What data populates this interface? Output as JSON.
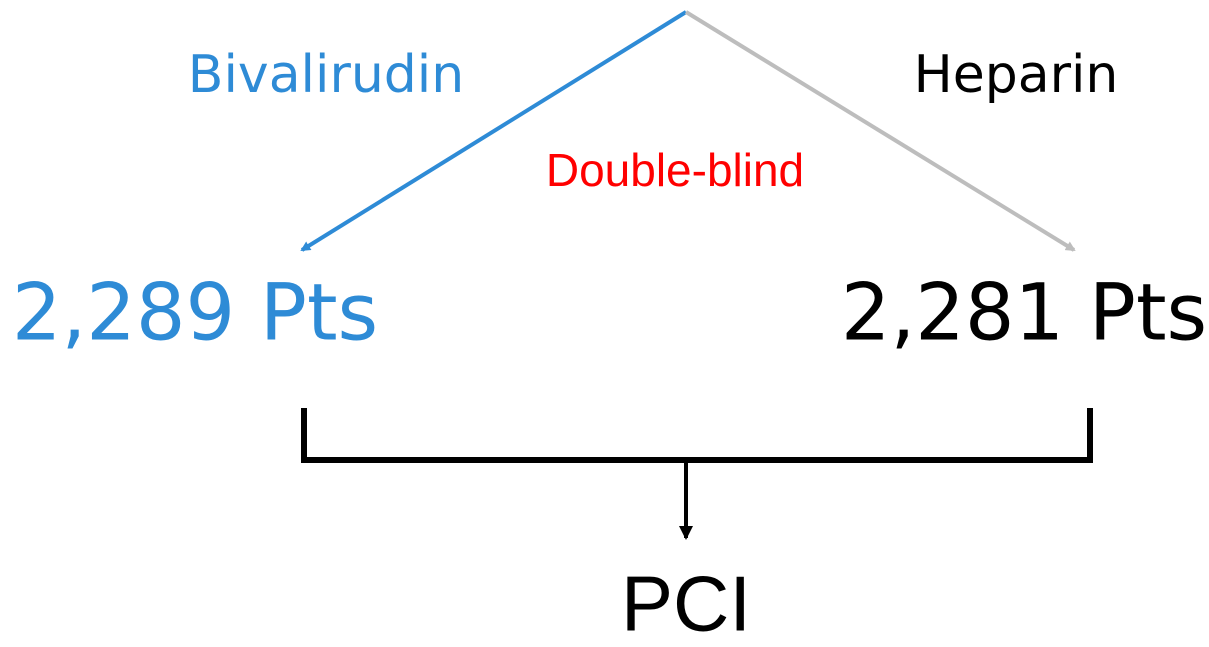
{
  "arms": [
    {
      "label": "Bivalirudin",
      "patients": "2,289 Pts"
    },
    {
      "label": "Heparin",
      "patients": "2,281 Pts"
    }
  ],
  "blinding": "Double-blind",
  "procedure": "PCI"
}
